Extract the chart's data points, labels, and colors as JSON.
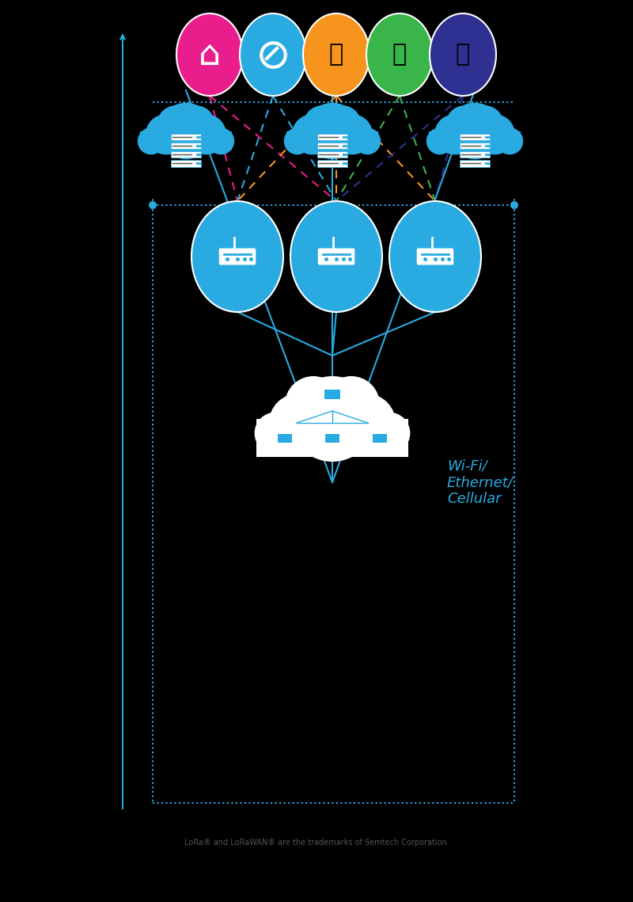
{
  "background_color": "#000000",
  "icon_colors": [
    "#E91E8C",
    "#29ABE2",
    "#F7941D",
    "#39B54A",
    "#2E3192"
  ],
  "gateway_color": "#29ABE2",
  "cloud_fill": "#FFFFFF",
  "cloud_stroke": "#29ABE2",
  "server_cloud_color": "#29ABE2",
  "line_color": "#29ABE2",
  "dashed_colors": [
    "#E91E8C",
    "#29ABE2",
    "#F7941D",
    "#39B54A",
    "#2E3192"
  ],
  "wifi_text": "Wi-Fi/\nEthernet/\nCellular",
  "wifi_text_color": "#29ABE2",
  "footer_text": "LoRa® and LoRaWAN® are the trademarks of Semtech Corporation.",
  "footer_color": "#555555",
  "arrow_color": "#29ABE2",
  "dot_color": "#29ABE2",
  "border_color": "#29ABE2"
}
